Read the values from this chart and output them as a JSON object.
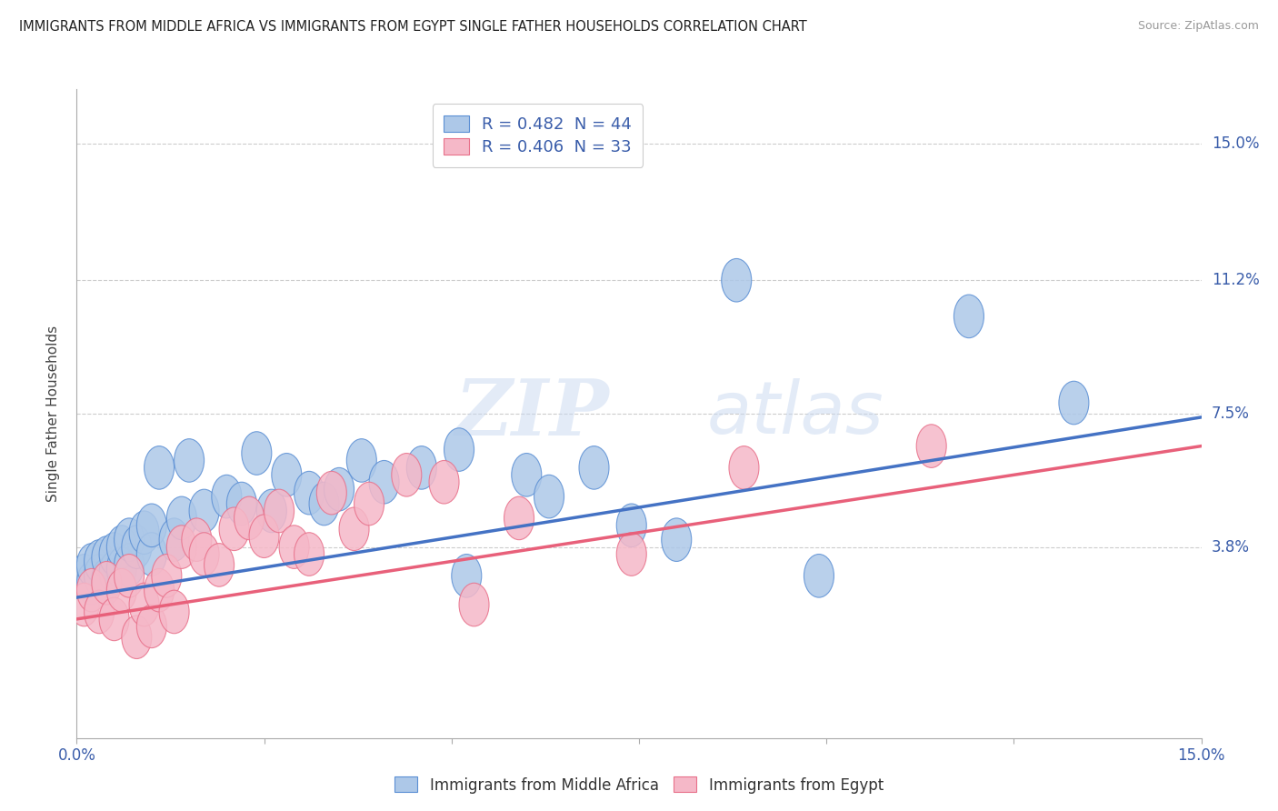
{
  "title": "IMMIGRANTS FROM MIDDLE AFRICA VS IMMIGRANTS FROM EGYPT SINGLE FATHER HOUSEHOLDS CORRELATION CHART",
  "source": "Source: ZipAtlas.com",
  "ylabel": "Single Father Households",
  "ytick_labels": [
    "3.8%",
    "7.5%",
    "11.2%",
    "15.0%"
  ],
  "ytick_values": [
    0.038,
    0.075,
    0.112,
    0.15
  ],
  "xlim": [
    0.0,
    0.15
  ],
  "ylim": [
    -0.015,
    0.165
  ],
  "legend1_label": "R = 0.482  N = 44",
  "legend2_label": "R = 0.406  N = 33",
  "blue_face_color": "#adc8e8",
  "pink_face_color": "#f5b8c8",
  "blue_edge_color": "#5b8fd4",
  "pink_edge_color": "#e8708a",
  "blue_line_color": "#4472c4",
  "pink_line_color": "#e8607a",
  "blue_scatter": [
    [
      0.001,
      0.03
    ],
    [
      0.002,
      0.028
    ],
    [
      0.002,
      0.033
    ],
    [
      0.003,
      0.03
    ],
    [
      0.003,
      0.034
    ],
    [
      0.004,
      0.029
    ],
    [
      0.004,
      0.035
    ],
    [
      0.005,
      0.031
    ],
    [
      0.005,
      0.036
    ],
    [
      0.006,
      0.032
    ],
    [
      0.006,
      0.038
    ],
    [
      0.007,
      0.033
    ],
    [
      0.007,
      0.04
    ],
    [
      0.008,
      0.038
    ],
    [
      0.009,
      0.042
    ],
    [
      0.01,
      0.036
    ],
    [
      0.01,
      0.044
    ],
    [
      0.011,
      0.06
    ],
    [
      0.013,
      0.04
    ],
    [
      0.014,
      0.046
    ],
    [
      0.015,
      0.062
    ],
    [
      0.017,
      0.048
    ],
    [
      0.02,
      0.052
    ],
    [
      0.022,
      0.05
    ],
    [
      0.024,
      0.064
    ],
    [
      0.026,
      0.048
    ],
    [
      0.028,
      0.058
    ],
    [
      0.031,
      0.053
    ],
    [
      0.033,
      0.05
    ],
    [
      0.035,
      0.054
    ],
    [
      0.038,
      0.062
    ],
    [
      0.041,
      0.056
    ],
    [
      0.046,
      0.06
    ],
    [
      0.051,
      0.065
    ],
    [
      0.052,
      0.03
    ],
    [
      0.06,
      0.058
    ],
    [
      0.063,
      0.052
    ],
    [
      0.069,
      0.06
    ],
    [
      0.074,
      0.044
    ],
    [
      0.08,
      0.04
    ],
    [
      0.088,
      0.112
    ],
    [
      0.099,
      0.03
    ],
    [
      0.119,
      0.102
    ],
    [
      0.133,
      0.078
    ]
  ],
  "pink_scatter": [
    [
      0.001,
      0.022
    ],
    [
      0.002,
      0.026
    ],
    [
      0.003,
      0.02
    ],
    [
      0.004,
      0.028
    ],
    [
      0.005,
      0.018
    ],
    [
      0.006,
      0.026
    ],
    [
      0.007,
      0.03
    ],
    [
      0.008,
      0.013
    ],
    [
      0.009,
      0.022
    ],
    [
      0.01,
      0.016
    ],
    [
      0.011,
      0.026
    ],
    [
      0.012,
      0.03
    ],
    [
      0.013,
      0.02
    ],
    [
      0.014,
      0.038
    ],
    [
      0.016,
      0.04
    ],
    [
      0.017,
      0.036
    ],
    [
      0.019,
      0.033
    ],
    [
      0.021,
      0.043
    ],
    [
      0.023,
      0.046
    ],
    [
      0.025,
      0.041
    ],
    [
      0.027,
      0.048
    ],
    [
      0.029,
      0.038
    ],
    [
      0.031,
      0.036
    ],
    [
      0.034,
      0.053
    ],
    [
      0.037,
      0.043
    ],
    [
      0.039,
      0.05
    ],
    [
      0.044,
      0.058
    ],
    [
      0.049,
      0.056
    ],
    [
      0.053,
      0.022
    ],
    [
      0.059,
      0.046
    ],
    [
      0.074,
      0.036
    ],
    [
      0.089,
      0.06
    ],
    [
      0.114,
      0.066
    ]
  ],
  "blue_trendline": [
    [
      0.0,
      0.024
    ],
    [
      0.15,
      0.074
    ]
  ],
  "pink_trendline": [
    [
      0.0,
      0.018
    ],
    [
      0.15,
      0.066
    ]
  ],
  "watermark_zi": "ZI",
  "watermark_p": "P",
  "watermark_atlas": "atlas",
  "background_color": "#ffffff",
  "grid_color": "#cccccc",
  "bottom_legend_labels": [
    "Immigrants from Middle Africa",
    "Immigrants from Egypt"
  ]
}
